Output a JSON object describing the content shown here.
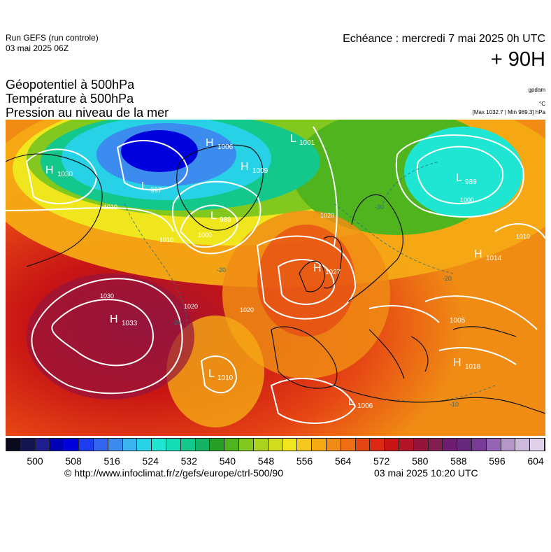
{
  "header": {
    "run_label": "Run GEFS (run controle)",
    "run_date": "03 mai 2025 06Z",
    "echeance": "Echéance : mercredi 7 mai 2025 0h UTC",
    "lead": "+ 90H",
    "title_line1": "Géopotentiel à 500hPa",
    "title_line2": "Température à 500hPa",
    "title_line3": "Pression au niveau de la mer",
    "unit_geo": "gpdam",
    "unit_temp": "°C",
    "pressure_range": "[Max 1032.7 | Min 989.3] hPa"
  },
  "map": {
    "pressure_centers": [
      {
        "type": "H",
        "value": "1030"
      },
      {
        "type": "L",
        "value": "997"
      },
      {
        "type": "H",
        "value": "1006"
      },
      {
        "type": "L",
        "value": "1001"
      },
      {
        "type": "H",
        "value": "1009"
      },
      {
        "type": "L",
        "value": "989"
      },
      {
        "type": "L",
        "value": "989"
      },
      {
        "type": "H",
        "value": "1027"
      },
      {
        "type": "H",
        "value": "1014"
      },
      {
        "type": "H",
        "value": "1033"
      },
      {
        "type": "L",
        "value": "1010"
      },
      {
        "type": "L",
        "value": "1006"
      },
      {
        "type": "H",
        "value": "1018"
      },
      {
        "type": "L",
        "value": "1005"
      }
    ],
    "isobar_labels": [
      "1010",
      "1020",
      "1030",
      "1000",
      "1020",
      "1010",
      "1020",
      "1000",
      "1010"
    ],
    "isotherm_labels": [
      "-20",
      "-20",
      "-10",
      "-20",
      "-30"
    ]
  },
  "colorbar": {
    "ticks": [
      "500",
      "508",
      "516",
      "524",
      "532",
      "540",
      "548",
      "556",
      "564",
      "572",
      "580",
      "588",
      "596",
      "604"
    ],
    "colors": [
      "#0a0a1e",
      "#141450",
      "#1e1e8c",
      "#0000b4",
      "#0000dc",
      "#1e3cf0",
      "#3264f0",
      "#3c8cf0",
      "#3cb4f0",
      "#28d2e6",
      "#1ee6d2",
      "#14dcb4",
      "#14c88c",
      "#14b464",
      "#28a028",
      "#50b41e",
      "#82c81e",
      "#aad21e",
      "#d2dc1e",
      "#f0e61e",
      "#f5c81e",
      "#f5aa14",
      "#f08c14",
      "#f06e14",
      "#e64614",
      "#dc2814",
      "#c81414",
      "#b41428",
      "#96143c",
      "#821e50",
      "#6e1e6e",
      "#64287d",
      "#783c96",
      "#9664b4",
      "#b496c8",
      "#cdb9dc",
      "#e1d2eb"
    ]
  },
  "footer": {
    "url": "© http://www.infoclimat.fr/z/gefs/europe/ctrl-500/90",
    "timestamp": "03 mai 2025 10:20 UTC"
  }
}
